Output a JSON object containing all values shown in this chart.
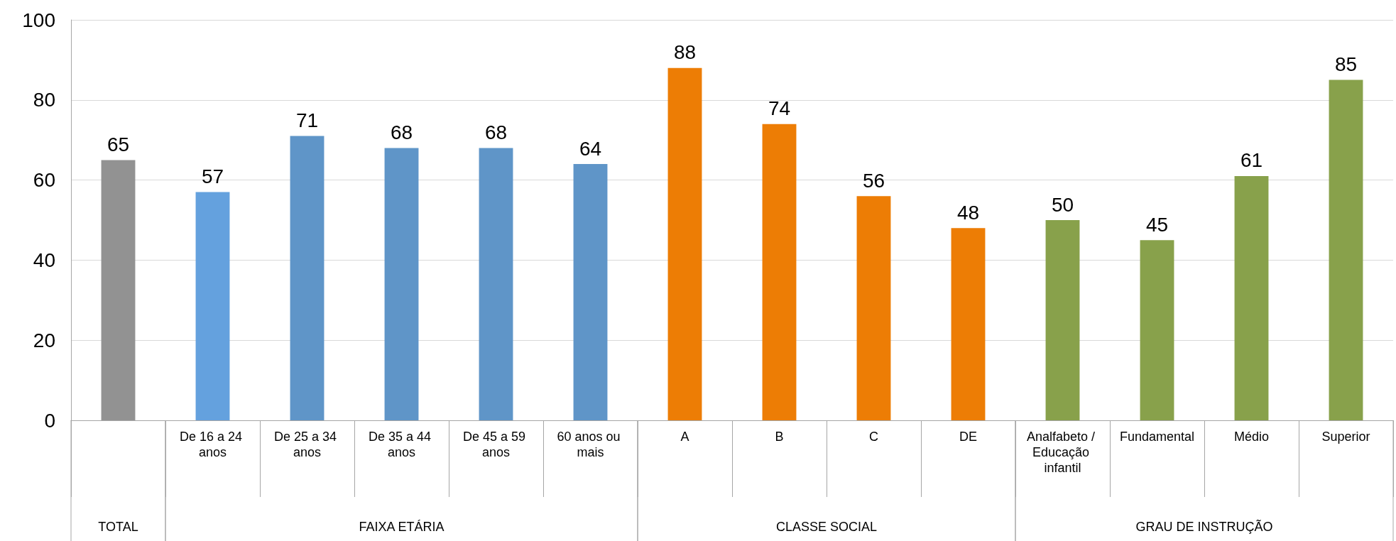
{
  "chart_data": {
    "type": "bar",
    "categories": [
      null,
      "De 16 a 24 anos",
      "De 25 a 34 anos",
      "De 35 a 44 anos",
      "De 45 a 59 anos",
      "60 anos ou mais",
      "A",
      "B",
      "C",
      "DE",
      "Analfabeto / Educação infantil",
      "Fundamental",
      "Médio",
      "Superior"
    ],
    "values": [
      65,
      57,
      71,
      68,
      68,
      64,
      88,
      74,
      56,
      48,
      50,
      45,
      61,
      85
    ],
    "colors": [
      "#929292",
      "#64a1de",
      "#5f95c8",
      "#5f95c8",
      "#5f95c8",
      "#5f95c8",
      "#ed7d05",
      "#ed7d05",
      "#ed7d05",
      "#ed7d05",
      "#88a14b",
      "#88a14b",
      "#88a14b",
      "#88a14b"
    ],
    "ylim": [
      0,
      100
    ],
    "yticks": [
      0,
      20,
      40,
      60,
      80,
      100
    ],
    "grid": "y",
    "data_labels": true,
    "annotations": [
      "TOTAL",
      "FAIXA ETÁRIA",
      "CLASSE SOCIAL",
      "GRAU DE INSTRUÇÃO"
    ]
  }
}
